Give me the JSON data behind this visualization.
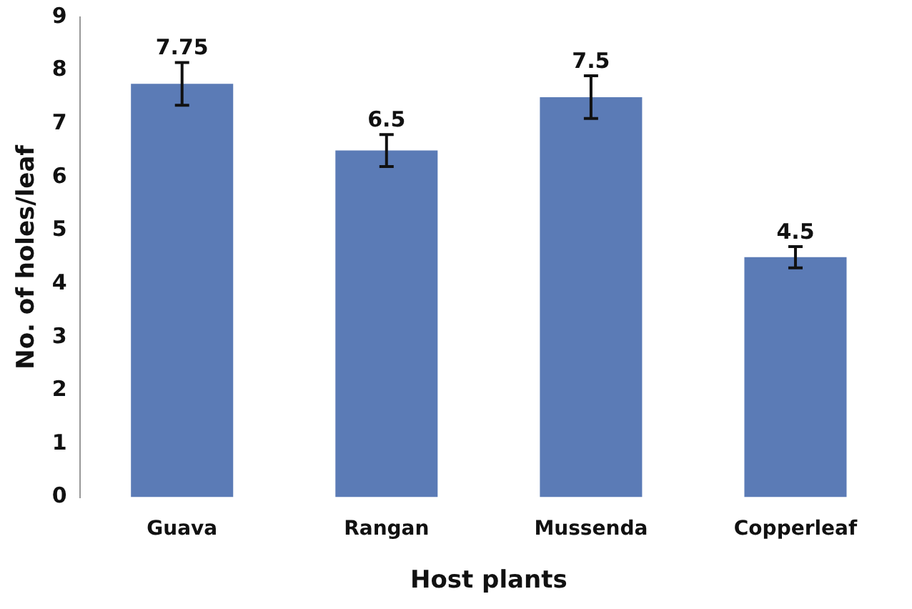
{
  "chart_data": {
    "type": "bar",
    "xlabel": "Host plants",
    "ylabel": "No. of holes/leaf",
    "categories": [
      "Guava",
      "Rangan",
      "Mussenda",
      "Copperleaf"
    ],
    "values": [
      7.75,
      6.5,
      7.5,
      4.5
    ],
    "errors": [
      0.4,
      0.3,
      0.4,
      0.2
    ],
    "color": "#5b7bb6",
    "ylim": [
      0,
      9
    ],
    "yticks": [
      0,
      1,
      2,
      3,
      4,
      5,
      6,
      7,
      8,
      9
    ],
    "grid": false,
    "data_labels": true
  }
}
